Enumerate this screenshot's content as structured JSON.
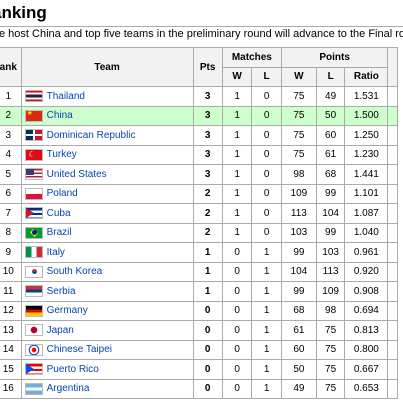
{
  "heading": "anking",
  "intro": "e host China and top five teams in the preliminary round will advance to the Final round.",
  "columns": {
    "rank": "ank",
    "team": "Team",
    "pts": "Pts",
    "matches": "Matches",
    "points": "Points",
    "w": "W",
    "l": "L",
    "pw": "W",
    "pl": "L",
    "ratio": "Ratio"
  },
  "rows": [
    {
      "rank": "1",
      "team": "Thailand",
      "pts": "3",
      "w": "1",
      "l": "0",
      "pw": "75",
      "pl": "49",
      "ratio": "1.531",
      "flag": "thailand-flag-icon"
    },
    {
      "rank": "2",
      "team": "China",
      "pts": "3",
      "w": "1",
      "l": "0",
      "pw": "75",
      "pl": "50",
      "ratio": "1.500",
      "flag": "china-flag-icon",
      "highlight": true,
      "highlight_color": "#ccffcc"
    },
    {
      "rank": "3",
      "team": "Dominican Republic",
      "pts": "3",
      "w": "1",
      "l": "0",
      "pw": "75",
      "pl": "60",
      "ratio": "1.250",
      "flag": "dominican-republic-flag-icon"
    },
    {
      "rank": "4",
      "team": "Turkey",
      "pts": "3",
      "w": "1",
      "l": "0",
      "pw": "75",
      "pl": "61",
      "ratio": "1.230",
      "flag": "turkey-flag-icon"
    },
    {
      "rank": "5",
      "team": "United States",
      "pts": "3",
      "w": "1",
      "l": "0",
      "pw": "98",
      "pl": "68",
      "ratio": "1.441",
      "flag": "united-states-flag-icon"
    },
    {
      "rank": "6",
      "team": "Poland",
      "pts": "2",
      "w": "1",
      "l": "0",
      "pw": "109",
      "pl": "99",
      "ratio": "1.101",
      "flag": "poland-flag-icon"
    },
    {
      "rank": "7",
      "team": "Cuba",
      "pts": "2",
      "w": "1",
      "l": "0",
      "pw": "113",
      "pl": "104",
      "ratio": "1.087",
      "flag": "cuba-flag-icon"
    },
    {
      "rank": "8",
      "team": "Brazil",
      "pts": "2",
      "w": "1",
      "l": "0",
      "pw": "103",
      "pl": "99",
      "ratio": "1.040",
      "flag": "brazil-flag-icon"
    },
    {
      "rank": "9",
      "team": "Italy",
      "pts": "1",
      "w": "0",
      "l": "1",
      "pw": "99",
      "pl": "103",
      "ratio": "0.961",
      "flag": "italy-flag-icon"
    },
    {
      "rank": "10",
      "team": "South Korea",
      "pts": "1",
      "w": "0",
      "l": "1",
      "pw": "104",
      "pl": "113",
      "ratio": "0.920",
      "flag": "south-korea-flag-icon"
    },
    {
      "rank": "11",
      "team": "Serbia",
      "pts": "1",
      "w": "0",
      "l": "1",
      "pw": "99",
      "pl": "109",
      "ratio": "0.908",
      "flag": "serbia-flag-icon"
    },
    {
      "rank": "12",
      "team": "Germany",
      "pts": "0",
      "w": "0",
      "l": "1",
      "pw": "68",
      "pl": "98",
      "ratio": "0.694",
      "flag": "germany-flag-icon"
    },
    {
      "rank": "13",
      "team": "Japan",
      "pts": "0",
      "w": "0",
      "l": "1",
      "pw": "61",
      "pl": "75",
      "ratio": "0.813",
      "flag": "japan-flag-icon"
    },
    {
      "rank": "14",
      "team": "Chinese Taipei",
      "pts": "0",
      "w": "0",
      "l": "1",
      "pw": "60",
      "pl": "75",
      "ratio": "0.800",
      "flag": "chinese-taipei-flag-icon"
    },
    {
      "rank": "15",
      "team": "Puerto Rico",
      "pts": "0",
      "w": "0",
      "l": "1",
      "pw": "50",
      "pl": "75",
      "ratio": "0.667",
      "flag": "puerto-rico-flag-icon"
    },
    {
      "rank": "16",
      "team": "Argentina",
      "pts": "0",
      "w": "0",
      "l": "1",
      "pw": "49",
      "pl": "75",
      "ratio": "0.653",
      "flag": "argentina-flag-icon"
    }
  ]
}
